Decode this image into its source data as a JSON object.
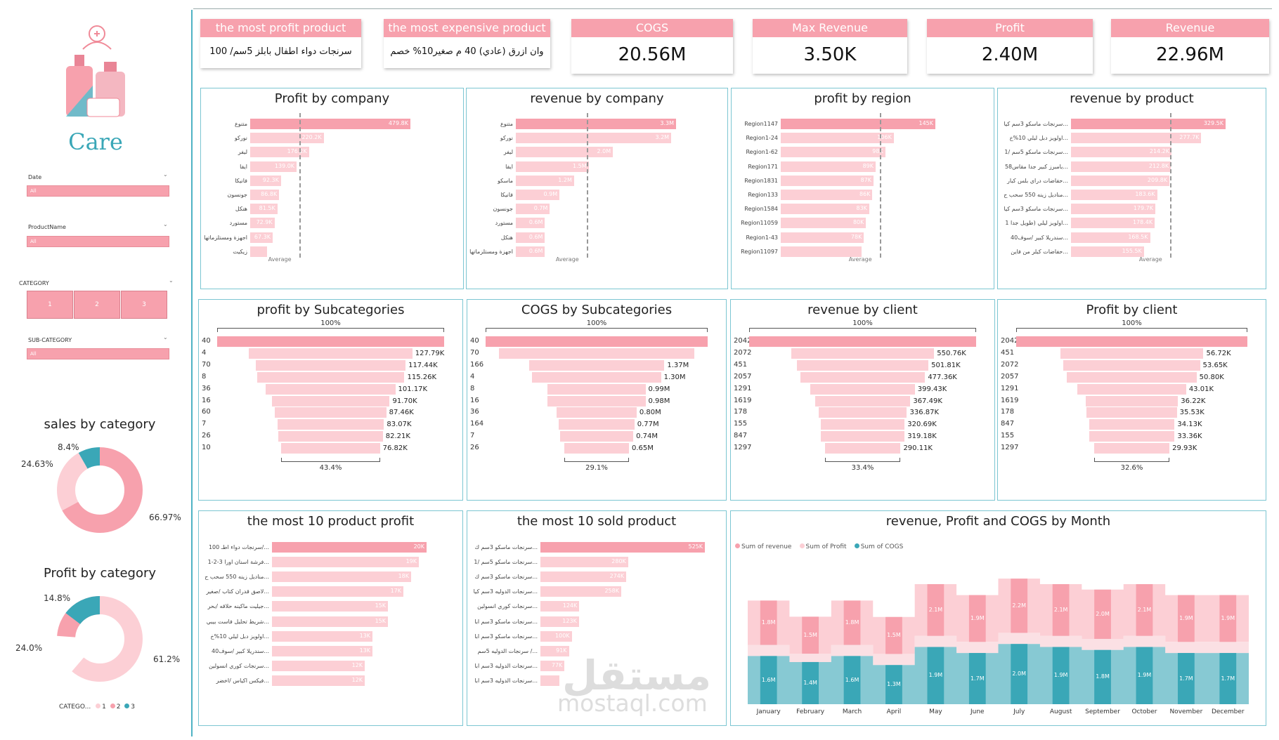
{
  "sidebar": {
    "brand": "Care",
    "slicers": [
      {
        "label": "Date",
        "value": "All"
      },
      {
        "label": "ProductName",
        "value": "All"
      },
      {
        "label": "SUB-CATEGORY",
        "value": "All"
      }
    ],
    "category_label": "CATEGORY",
    "category_buttons": [
      "1",
      "2",
      "3"
    ],
    "sales_title": "sales by category",
    "sales_labels": [
      "8.4%",
      "24.63%",
      "66.97%"
    ],
    "profit_title": "Profit by category",
    "profit_labels": [
      "14.8%",
      "24.0%",
      "61.2%"
    ],
    "legend_title": "CATEGO...",
    "legend_items": [
      "1",
      "2",
      "3"
    ]
  },
  "cards": [
    {
      "title": "the most profit product",
      "value": "سرنجات دواء اطفال بابلز 5سم/ 100",
      "kind": "text"
    },
    {
      "title": "the most expensive product",
      "value": "وان ازرق (عادي) 40 م صغير10% خصم",
      "kind": "text"
    },
    {
      "title": "COGS",
      "value": "20.56M",
      "kind": "num"
    },
    {
      "title": "Max Revenue",
      "value": "3.50K",
      "kind": "num"
    },
    {
      "title": "Profit",
      "value": "2.40M",
      "kind": "num"
    },
    {
      "title": "Revenue",
      "value": "22.96M",
      "kind": "num"
    }
  ],
  "bars": {
    "avg_label": "Average",
    "profit_company": {
      "title": "Profit by company",
      "labels": [
        "متنوع",
        "نوركو",
        "ليفر",
        "ايفا",
        "فانيكا",
        "جونسون",
        "هنكل",
        "مستورد",
        "اجهزة ومستلزماتها",
        "زيكيت"
      ],
      "values": [
        "479.8K",
        "220.2K",
        "176.2K",
        "139.0K",
        "92.3K",
        "86.8K",
        "81.5K",
        "72.9K",
        "67.3K",
        ""
      ],
      "nums": [
        479.8,
        220.2,
        176.2,
        139.0,
        92.3,
        86.8,
        81.5,
        72.9,
        67.3,
        50
      ]
    },
    "revenue_company": {
      "title": "revenue by company",
      "labels": [
        "متنوع",
        "نوركو",
        "ليفر",
        "ايفا",
        "ماسكو",
        "فانيكا",
        "جونسون",
        "مستورد",
        "هنكل",
        "اجهزة ومستلزماتها"
      ],
      "values": [
        "3.3M",
        "3.2M",
        "2.0M",
        "1.5M",
        "1.2M",
        "0.9M",
        "0.7M",
        "0.6M",
        "0.6M",
        "0.6M"
      ],
      "nums": [
        3.3,
        3.2,
        2.0,
        1.5,
        1.2,
        0.9,
        0.7,
        0.6,
        0.6,
        0.6
      ]
    },
    "profit_region": {
      "title": "profit by region",
      "labels": [
        "Region1147",
        "Region1-24",
        "Region1-62",
        "Region171",
        "Region1831",
        "Region133",
        "Region1584",
        "Region11059",
        "Region1-43",
        "Region11097"
      ],
      "values": [
        "145K",
        "106K",
        "98K",
        "89K",
        "87K",
        "86K",
        "83K",
        "80K",
        "78K",
        ""
      ],
      "nums": [
        145,
        106,
        98,
        89,
        87,
        86,
        83,
        80,
        78,
        76
      ]
    },
    "revenue_product": {
      "title": "revenue by product",
      "labels": [
        "سرنجات ماسكو 3سم كيا...",
        "اولويز دبل ليلي 10%خ...",
        "سرنجات ماسكو 5سم /1...",
        "بامبرز كبير جدا مقاس58...",
        "حفاضات دراي بلس كبار...",
        "مناديل زينه 550 سحب ح...",
        "سرنجات ماسكو 3سم كيا...",
        "اولويز ليلي (طويل جدا 1...",
        "سندريلا كبير /سوف40...",
        "حفاضات كيلر من فاين..."
      ],
      "values": [
        "329.5K",
        "277.7K",
        "214.2K",
        "212.8K",
        "209.8K",
        "183.6K",
        "179.7K",
        "178.4K",
        "168.5K",
        "155.5K"
      ],
      "nums": [
        329.5,
        277.7,
        214.2,
        212.8,
        209.8,
        183.6,
        179.7,
        178.4,
        168.5,
        155.5
      ]
    },
    "top10_profit": {
      "title": "the most 10 product profit",
      "labels": [
        "سرنجات دواء اطـ 100/...",
        "فرشة اسنان اورا 3-2-1...",
        "مناديل زينه 550 سحب ح...",
        "لاصق قدران كتاب /صغير...",
        "جيليت ماكينه حلاقه /بحر...",
        "شريط تحليل فاست بيبي...",
        "اولويز دبل ليلي 10%خ...",
        "سندريلا كبير /سوف40...",
        "سرنجات كوري انسولين...",
        "فيكس اكياس /اخضر..."
      ],
      "values": [
        "20K",
        "19K",
        "18K",
        "17K",
        "15K",
        "15K",
        "13K",
        "13K",
        "12K",
        "12K"
      ],
      "nums": [
        20,
        19,
        18,
        17,
        15,
        15,
        13,
        13,
        12,
        12
      ]
    },
    "top10_sold": {
      "title": "the most 10 sold product",
      "labels": [
        "سرنجات ماسكو 3سم ك...",
        "سرنجات ماسكو 5سم /1...",
        "سرنجات ماسكو 3سم ك...",
        "سرنجات الدوليه 3سم كيا...",
        "سرنجات كوري انسولين...",
        "سرنجات ماسكو 3سم ابا...",
        "سرنجات ماسكو 3سم ابا...",
        "سرنجات الدوليه 5سم /...",
        "سرنجات الدوليه 3سم ابا...",
        "سرنجات الدوليه 3سم ابا..."
      ],
      "values": [
        "525K",
        "280K",
        "274K",
        "258K",
        "124K",
        "123K",
        "100K",
        "91K",
        "77K",
        ""
      ],
      "nums": [
        525,
        280,
        274,
        258,
        124,
        123,
        100,
        91,
        77,
        60
      ]
    }
  },
  "funnels": {
    "profit_sub": {
      "title": "profit by Subcategories",
      "top_pct": "100%",
      "bottom_pct": "43.4%",
      "labels": [
        "40",
        "4",
        "70",
        "8",
        "36",
        "16",
        "60",
        "7",
        "26",
        "10"
      ],
      "values": [
        "",
        "127.79K",
        "117.44K",
        "115.26K",
        "101.17K",
        "91.70K",
        "87.46K",
        "83.07K",
        "82.21K",
        "76.82K"
      ],
      "fracs": [
        1,
        0.72,
        0.66,
        0.65,
        0.57,
        0.52,
        0.49,
        0.47,
        0.46,
        0.434
      ]
    },
    "cogs_sub": {
      "title": "COGS by Subcategories",
      "top_pct": "100%",
      "bottom_pct": "29.1%",
      "labels": [
        "40",
        "70",
        "166",
        "4",
        "8",
        "16",
        "36",
        "164",
        "7",
        "26"
      ],
      "values": [
        "",
        "",
        "1.37M",
        "1.30M",
        "0.99M",
        "0.98M",
        "0.80M",
        "0.77M",
        "0.74M",
        "0.65M"
      ],
      "fracs": [
        1,
        0.88,
        0.61,
        0.58,
        0.44,
        0.44,
        0.36,
        0.34,
        0.33,
        0.291
      ]
    },
    "revenue_client": {
      "title": "revenue by client",
      "top_pct": "100%",
      "bottom_pct": "33.4%",
      "labels": [
        "2042",
        "2072",
        "451",
        "2057",
        "1291",
        "1619",
        "178",
        "155",
        "847",
        "1297"
      ],
      "values": [
        "",
        "550.76K",
        "501.81K",
        "477.36K",
        "399.43K",
        "367.49K",
        "336.87K",
        "320.69K",
        "319.18K",
        "290.11K"
      ],
      "fracs": [
        1,
        0.63,
        0.58,
        0.55,
        0.46,
        0.42,
        0.39,
        0.37,
        0.37,
        0.334
      ]
    },
    "profit_client": {
      "title": "Profit by client",
      "top_pct": "100%",
      "bottom_pct": "32.6%",
      "labels": [
        "2042",
        "451",
        "2072",
        "2057",
        "1291",
        "1619",
        "178",
        "847",
        "155",
        "1297"
      ],
      "values": [
        "",
        "56.72K",
        "53.65K",
        "50.80K",
        "43.01K",
        "36.22K",
        "35.53K",
        "34.13K",
        "33.36K",
        "29.93K"
      ],
      "fracs": [
        1,
        0.62,
        0.59,
        0.56,
        0.47,
        0.4,
        0.39,
        0.37,
        0.37,
        0.326
      ]
    }
  },
  "chart_data": {
    "type": "area",
    "title": "revenue, Profit and COGS by Month",
    "categories": [
      "January",
      "February",
      "March",
      "April",
      "May",
      "June",
      "July",
      "August",
      "September",
      "October",
      "November",
      "December"
    ],
    "series": [
      {
        "name": "Sum of revenue",
        "color": "#f7a1ad",
        "values": [
          1.8,
          1.5,
          1.8,
          1.5,
          2.1,
          1.9,
          2.2,
          2.1,
          2.0,
          2.1,
          1.9,
          1.9
        ]
      },
      {
        "name": "Sum of Profit",
        "color": "#fccfd5",
        "values": [
          0.2,
          0.1,
          0.2,
          0.2,
          0.2,
          0.2,
          0.2,
          0.2,
          0.2,
          0.2,
          0.2,
          0.2
        ]
      },
      {
        "name": "Sum of COGS",
        "color": "#3aa7b7",
        "values": [
          1.6,
          1.4,
          1.6,
          1.3,
          1.9,
          1.7,
          2.0,
          1.9,
          1.8,
          1.9,
          1.7,
          1.7
        ]
      }
    ],
    "revenue_labels": [
      "1.8M",
      "1.5M",
      "1.8M",
      "1.5M",
      "2.1M",
      "1.9M",
      "2.2M",
      "2.1M",
      "2.0M",
      "2.1M",
      "1.9M",
      "1.9M"
    ],
    "cogs_labels": [
      "1.6M",
      "1.4M",
      "1.6M",
      "1.3M",
      "1.9M",
      "1.7M",
      "2.0M",
      "1.9M",
      "1.8M",
      "1.9M",
      "1.7M",
      "1.7M"
    ]
  },
  "watermark": {
    "ar": "مستقل",
    "en": "mostaql.com"
  },
  "colors": {
    "pink": "#f7a1ad",
    "lightpink": "#fccfd5",
    "teal": "#3aa7b7"
  }
}
